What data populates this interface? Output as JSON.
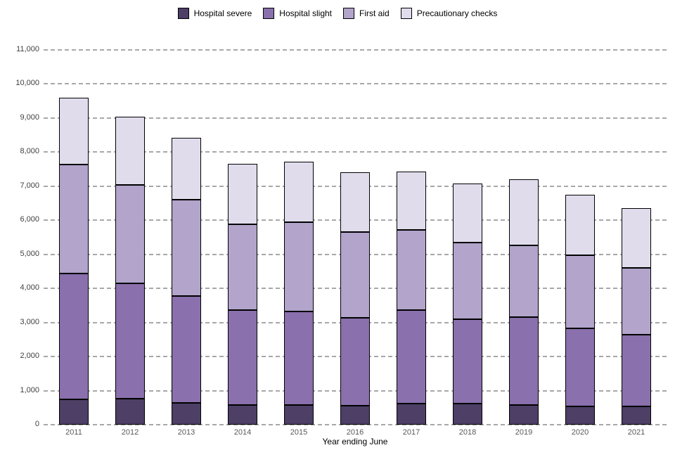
{
  "chart_data": {
    "type": "bar",
    "stacked": true,
    "title": "",
    "xlabel": "Year ending June",
    "ylabel": "",
    "ylim": [
      0,
      11000
    ],
    "ytick_step": 1000,
    "ytick_labels": [
      "0",
      "1,000",
      "2,000",
      "3,000",
      "4,000",
      "5,000",
      "6,000",
      "7,000",
      "8,000",
      "9,000",
      "10,000",
      "11,000"
    ],
    "grid": "horizontal-dashed",
    "legend_position": "top-center",
    "categories": [
      "2011",
      "2012",
      "2013",
      "2014",
      "2015",
      "2016",
      "2017",
      "2018",
      "2019",
      "2020",
      "2021"
    ],
    "series": [
      {
        "name": "Hospital severe",
        "color": "#4d3f66",
        "values": [
          750,
          770,
          630,
          580,
          570,
          560,
          610,
          620,
          570,
          530,
          530
        ]
      },
      {
        "name": "Hospital slight",
        "color": "#8a70ac",
        "values": [
          3690,
          3380,
          3150,
          2780,
          2750,
          2580,
          2750,
          2480,
          2580,
          2300,
          2110
        ]
      },
      {
        "name": "First aid",
        "color": "#b2a4cb",
        "values": [
          3180,
          2880,
          2820,
          2520,
          2610,
          2500,
          2350,
          2230,
          2100,
          2140,
          1960
        ]
      },
      {
        "name": "Precautionary checks",
        "color": "#e0dcec",
        "values": [
          1970,
          2000,
          1820,
          1770,
          1790,
          1770,
          1720,
          1740,
          1950,
          1770,
          1760
        ]
      }
    ],
    "totals": [
      9590,
      9030,
      8420,
      7650,
      7720,
      7410,
      7430,
      7070,
      7200,
      6740,
      6360
    ]
  }
}
